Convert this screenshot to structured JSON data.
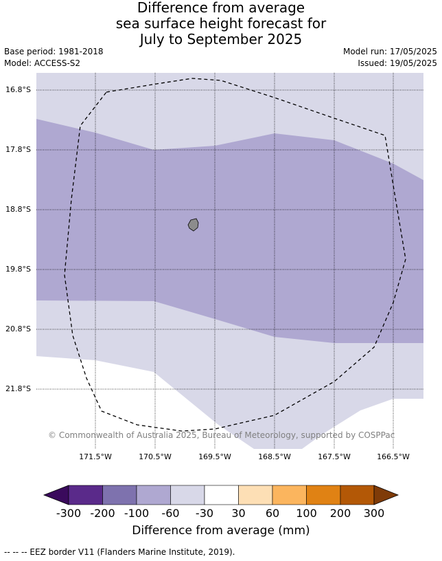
{
  "title": {
    "line1": "Difference from average",
    "line2": "sea surface height forecast for",
    "line3": "July to September 2025"
  },
  "meta": {
    "base_period": "Base period: 1981-2018",
    "model": "Model: ACCESS-S2",
    "model_run": "Model run: 17/05/2025",
    "issued": "Issued: 19/05/2025"
  },
  "map": {
    "lat_labels": [
      "16.8°S",
      "17.8°S",
      "18.8°S",
      "19.8°S",
      "20.8°S",
      "21.8°S"
    ],
    "lon_labels": [
      "171.5°W",
      "170.5°W",
      "169.5°W",
      "168.5°W",
      "167.5°W",
      "166.5°W"
    ],
    "copyright": "© Commonwealth of Australia 2025, Bureau of Meteorology, supported by COSPPac",
    "colors": {
      "band_-100_-60": "#afa8d1",
      "band_-60_-30": "#d8d8e8",
      "band_-30_30": "#ffffff",
      "island": "#8c8c8c"
    }
  },
  "colorbar": {
    "ticks": [
      "-300",
      "-200",
      "-100",
      "-60",
      "-30",
      "30",
      "60",
      "100",
      "200",
      "300"
    ],
    "colors": [
      "#3a0a5c",
      "#5a2a8a",
      "#7e72ae",
      "#afa8d1",
      "#d8d8e8",
      "#ffffff",
      "#fddfb5",
      "#fbb55e",
      "#e08214",
      "#b35806",
      "#7f3b08"
    ],
    "label": "Difference from average (mm)"
  },
  "footer": "--  --  -- EEZ border V11 (Flanders Marine Institute, 2019)."
}
